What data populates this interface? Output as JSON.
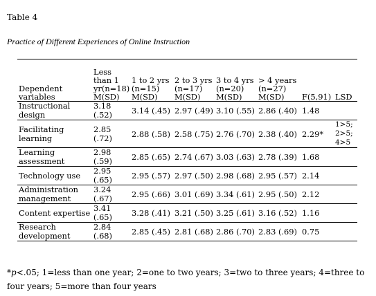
{
  "table_label": "Table 4",
  "table_title": "Practice of Different Experiences of Online Instruction",
  "headers": {
    "variables": "Dependent variables",
    "group0": "Less than 1 yr(n=18) M(SD)",
    "group1": "1 to 2 yrs (n=15) M(SD)",
    "group2": "2 to 3 yrs (n=17) M(SD)",
    "group3": "3 to 4 yrs (n=20) M(SD)",
    "group4": "> 4 years (n=27) M(SD)",
    "f": "F(5,91)",
    "lsd": "LSD"
  },
  "rows": [
    {
      "variable": "Instructional design",
      "g0": "3.18 (.52)",
      "g1": "3.14 (.45)",
      "g2": "2.97 (.49)",
      "g3": "3.10 (.55)",
      "g4": "2.86 (.40)",
      "f": "1.48",
      "lsd": ""
    },
    {
      "variable": "Facilitating learning",
      "g0": "2.85 (.72)",
      "g1": "2.88 (.58)",
      "g2": "2.58 (.75)",
      "g3": "2.76 (.70)",
      "g4": "2.38 (.40)",
      "f": "2.29*",
      "lsd": "1>5; 2>5; 4>5"
    },
    {
      "variable": "Learning assessment",
      "g0": "2.98 (.59)",
      "g1": "2.85 (.65)",
      "g2": "2.74 (.67)",
      "g3": "3.03 (.63)",
      "g4": "2.78 (.39)",
      "f": "1.68",
      "lsd": ""
    },
    {
      "variable": "Technology use",
      "g0": "2.95 (.65)",
      "g1": "2.95 (.57)",
      "g2": "2.97 (.50)",
      "g3": "2.98 (.68)",
      "g4": "2.95 (.57)",
      "f": "2.14",
      "lsd": ""
    },
    {
      "variable": "Administration management",
      "g0": "3.24 (.67)",
      "g1": "2.95 (.66)",
      "g2": "3.01 (.69)",
      "g3": "3.34 (.61)",
      "g4": "2.95 (.50)",
      "f": "2.12",
      "lsd": ""
    },
    {
      "variable": "Content expertise",
      "g0": "3.41 (.65)",
      "g1": "3.28 (.41)",
      "g2": "3.21 (.50)",
      "g3": "3.25 (.61)",
      "g4": "3.16 (.52)",
      "f": "1.16",
      "lsd": ""
    },
    {
      "variable": "Research development",
      "g0": "2.84 (.68)",
      "g1": "2.85 (.45)",
      "g2": "2.81 (.68)",
      "g3": "2.86 (.70)",
      "g4": "2.83 (.69)",
      "f": "0.75",
      "lsd": ""
    }
  ],
  "note": {
    "p_symbol": "*p",
    "text": "<.05; 1=less than one year; 2=one to two years; 3=two to three years; 4=three to four years; 5=more than four years"
  }
}
